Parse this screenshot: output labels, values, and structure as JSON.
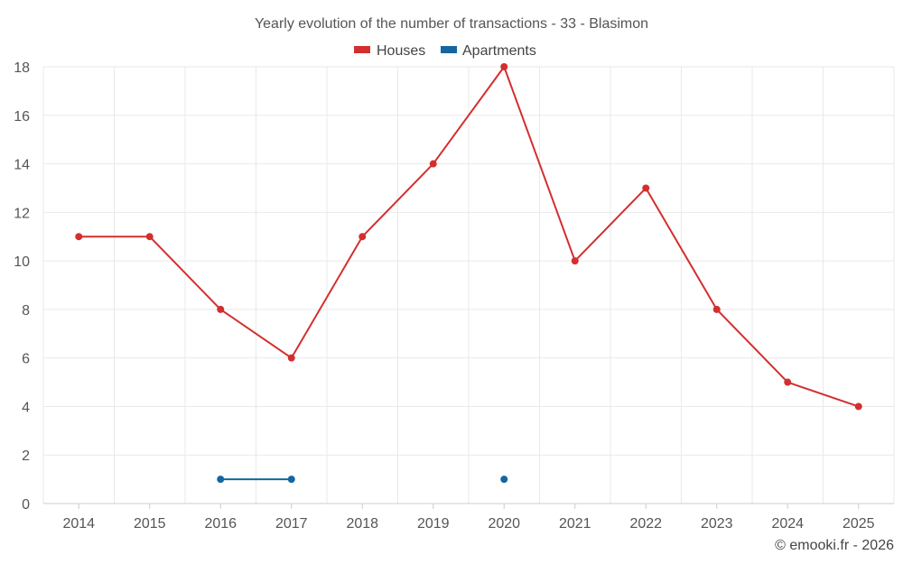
{
  "chart_data": {
    "type": "line",
    "title": "Yearly evolution of the number of transactions - 33 - Blasimon",
    "categories": [
      "2014",
      "2015",
      "2016",
      "2017",
      "2018",
      "2019",
      "2020",
      "2021",
      "2022",
      "2023",
      "2024",
      "2025"
    ],
    "series": [
      {
        "name": "Houses",
        "color": "#d32f2f",
        "values": [
          11,
          11,
          8,
          6,
          11,
          14,
          18,
          10,
          13,
          8,
          5,
          4
        ]
      },
      {
        "name": "Apartments",
        "color": "#1565a0",
        "values": [
          null,
          null,
          1,
          1,
          null,
          null,
          1,
          null,
          null,
          null,
          null,
          null
        ]
      }
    ],
    "ylim": [
      0,
      18
    ],
    "yticks": [
      0,
      2,
      4,
      6,
      8,
      10,
      12,
      14,
      16,
      18
    ],
    "grid": true,
    "legend": "top-center",
    "credit": "© emooki.fr - 2026"
  }
}
